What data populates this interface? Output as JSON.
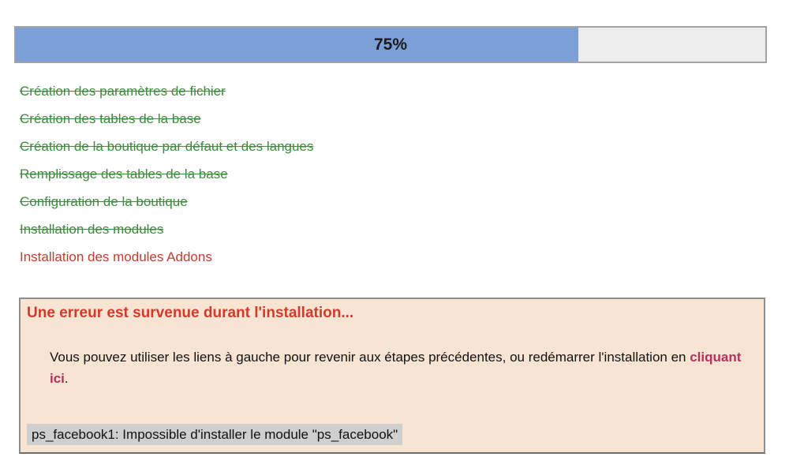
{
  "progress": {
    "percent": 75,
    "label": "75%",
    "fill_color": "#7c9fd7",
    "track_color": "#ededed"
  },
  "steps": {
    "items": [
      {
        "label": "Création des paramètres de fichier",
        "status": "done"
      },
      {
        "label": "Création des tables de la base",
        "status": "done"
      },
      {
        "label": "Création de la boutique par défaut et des langues",
        "status": "done"
      },
      {
        "label": "Remplissage des tables de la base",
        "status": "done"
      },
      {
        "label": "Configuration de la boutique",
        "status": "done"
      },
      {
        "label": "Installation des modules",
        "status": "done"
      },
      {
        "label": "Installation des modules Addons",
        "status": "error"
      }
    ],
    "done_color": "#3b8c3b",
    "error_color": "#c53b2e"
  },
  "error_panel": {
    "title": "Une erreur est survenue durant l'installation...",
    "body_before_link": "Vous pouvez utiliser les liens à gauche pour revenir aux étapes précédentes, ou redémarrer l'installation en ",
    "link_label": "cliquant ici",
    "body_after_link": ".",
    "detail_message": "ps_facebook1: Impossible d'installer le module \"ps_facebook\"",
    "background_color": "#f8e4d3",
    "title_color": "#d43a2b",
    "link_color": "#b5325f",
    "detail_background_color": "#cfcfcf"
  }
}
